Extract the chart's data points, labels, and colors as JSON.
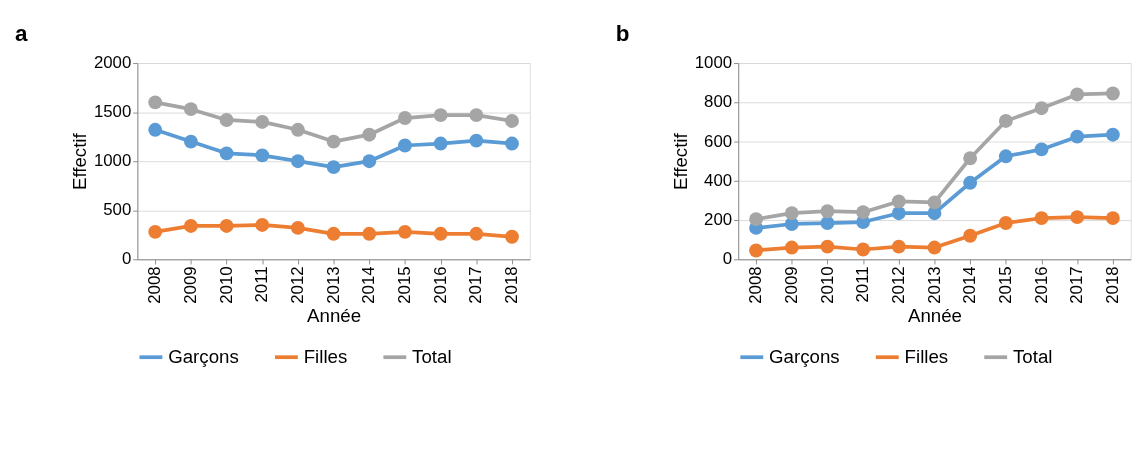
{
  "chart_data": [
    {
      "type": "line",
      "title": "a",
      "xlabel": "Année",
      "ylabel": "Effectif",
      "categories": [
        "2008",
        "2009",
        "2010",
        "2011",
        "2012",
        "2013",
        "2014",
        "2015",
        "2016",
        "2017",
        "2018"
      ],
      "series": [
        {
          "name": "Garçons",
          "color": "#5b9bd5",
          "values": [
            1320,
            1200,
            1080,
            1060,
            1000,
            940,
            1000,
            1160,
            1180,
            1210,
            1180
          ]
        },
        {
          "name": "Filles",
          "color": "#ed7d31",
          "values": [
            280,
            340,
            340,
            350,
            320,
            260,
            260,
            280,
            260,
            260,
            230
          ]
        },
        {
          "name": "Total",
          "color": "#a5a5a5",
          "values": [
            1600,
            1530,
            1420,
            1400,
            1320,
            1200,
            1270,
            1440,
            1470,
            1470,
            1410
          ]
        }
      ],
      "ylim": [
        0,
        2000
      ],
      "yticks": [
        0,
        500,
        1000,
        1500,
        2000
      ],
      "grid": "y",
      "legend": "bottom",
      "marker": "circle",
      "line_style": "solid"
    },
    {
      "type": "line",
      "title": "b",
      "xlabel": "Année",
      "ylabel": "Effectif",
      "categories": [
        "2008",
        "2009",
        "2010",
        "2011",
        "2012",
        "2013",
        "2014",
        "2015",
        "2016",
        "2017",
        "2018"
      ],
      "series": [
        {
          "name": "Garçons",
          "color": "#5b9bd5",
          "values": [
            160,
            180,
            185,
            190,
            235,
            235,
            390,
            525,
            560,
            625,
            635
          ]
        },
        {
          "name": "Filles",
          "color": "#ed7d31",
          "values": [
            45,
            60,
            65,
            50,
            65,
            60,
            120,
            185,
            210,
            215,
            210
          ]
        },
        {
          "name": "Total",
          "color": "#a5a5a5",
          "values": [
            205,
            235,
            245,
            240,
            295,
            290,
            515,
            705,
            770,
            840,
            845
          ]
        }
      ],
      "ylim": [
        0,
        1000
      ],
      "yticks": [
        0,
        200,
        400,
        600,
        800,
        1000
      ],
      "grid": "y",
      "legend": "bottom",
      "marker": "circle",
      "line_style": "solid"
    }
  ]
}
